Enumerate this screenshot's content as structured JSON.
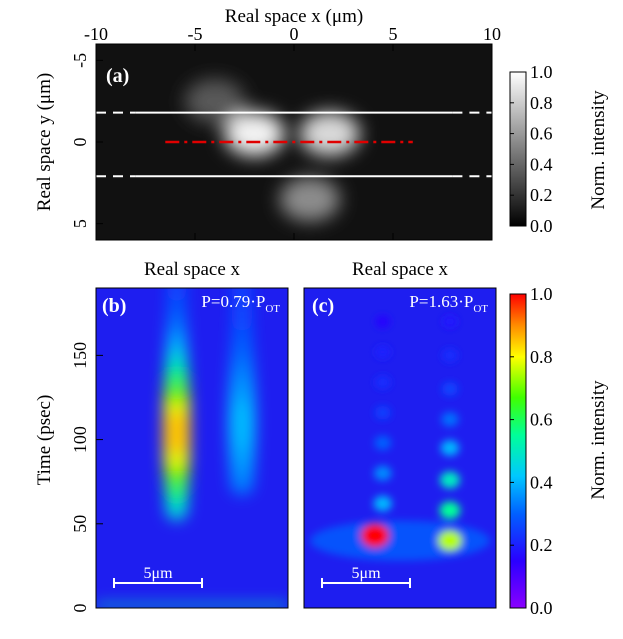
{
  "chart_data": [
    {
      "id": "a",
      "type": "heatmap",
      "panel_label": "(a)",
      "colormap": "grayscale",
      "xlabel": "Real space x (μm)",
      "ylabel": "Real space y (μm)",
      "xlim": [
        -10,
        10
      ],
      "ylim": [
        -6,
        6
      ],
      "y_inverted": true,
      "xticks": [
        "-10",
        "-5",
        "0",
        "5",
        "10"
      ],
      "xtick_values": [
        -10,
        -5,
        0,
        5,
        10
      ],
      "yticks": [
        "-5",
        "0",
        "5"
      ],
      "ytick_values": [
        -5,
        0,
        5
      ],
      "colorbar": {
        "label": "Norm. intensity",
        "ticks": [
          "0.0",
          "0.2",
          "0.4",
          "0.6",
          "0.8",
          "1.0"
        ],
        "tick_values": [
          0,
          0.2,
          0.4,
          0.6,
          0.8,
          1.0
        ]
      },
      "bright_spots": [
        {
          "x": -2.0,
          "y": -0.5,
          "intensity": 0.95
        },
        {
          "x": 1.8,
          "y": -0.5,
          "intensity": 0.85
        },
        {
          "x": 0.8,
          "y": 3.5,
          "intensity": 0.55
        },
        {
          "x": -4.0,
          "y": -2.5,
          "intensity": 0.35
        }
      ],
      "overlay_lines": [
        {
          "style": "solid-white",
          "y": -1.8,
          "x_from": -8,
          "x_to": 8
        },
        {
          "style": "dashed-white-ends",
          "y": -1.8,
          "x_segments": [
            [
              -10,
              -8
            ],
            [
              8,
              10
            ]
          ]
        },
        {
          "style": "solid-white",
          "y": 2.1,
          "x_from": -8,
          "x_to": 8
        },
        {
          "style": "dashed-white-ends",
          "y": 2.1,
          "x_segments": [
            [
              -10,
              -8
            ],
            [
              8,
              10
            ]
          ]
        },
        {
          "style": "dash-dot-red",
          "y": 0,
          "x_from": -6.5,
          "x_to": 6
        }
      ]
    },
    {
      "id": "b",
      "type": "heatmap",
      "panel_label": "(b)",
      "annotation": "P=0.79·P",
      "annotation_sub": "OT",
      "colormap": "rainbow",
      "xlabel": "Real space x",
      "ylabel": "Time (psec)",
      "ylim": [
        0,
        190
      ],
      "yticks": [
        "0",
        "50",
        "100",
        "150"
      ],
      "ytick_values": [
        0,
        50,
        100,
        150
      ],
      "scalebar": "5μm",
      "channels": [
        {
          "x_rel": 0.42,
          "t_start": 60,
          "t_end": 190,
          "peak_t": 105,
          "peak_intensity": 0.85
        },
        {
          "x_rel": 0.76,
          "t_start": 75,
          "t_end": 190,
          "peak_t": 110,
          "peak_intensity": 0.4
        }
      ]
    },
    {
      "id": "c",
      "type": "heatmap",
      "panel_label": "(c)",
      "annotation": "P=1.63·P",
      "annotation_sub": "OT",
      "colormap": "rainbow",
      "xlabel": "Real space x",
      "ylim": [
        0,
        190
      ],
      "scalebar": "5μm",
      "colorbar": {
        "label": "Norm. intensity",
        "ticks": [
          "0.0",
          "0.2",
          "0.4",
          "0.6",
          "0.8",
          "1.0"
        ],
        "tick_values": [
          0,
          0.2,
          0.4,
          0.6,
          0.8,
          1.0
        ]
      },
      "spots": [
        {
          "x_rel": 0.37,
          "t": 43,
          "intensity": 1.0
        },
        {
          "x_rel": 0.76,
          "t": 40,
          "intensity": 0.75
        },
        {
          "x_rel": 0.76,
          "t": 58,
          "intensity": 0.55
        },
        {
          "x_rel": 0.41,
          "t": 62,
          "intensity": 0.4
        },
        {
          "x_rel": 0.76,
          "t": 76,
          "intensity": 0.5
        },
        {
          "x_rel": 0.41,
          "t": 80,
          "intensity": 0.35
        },
        {
          "x_rel": 0.76,
          "t": 95,
          "intensity": 0.4
        },
        {
          "x_rel": 0.41,
          "t": 98,
          "intensity": 0.3
        },
        {
          "x_rel": 0.76,
          "t": 112,
          "intensity": 0.32
        },
        {
          "x_rel": 0.41,
          "t": 116,
          "intensity": 0.25
        },
        {
          "x_rel": 0.76,
          "t": 130,
          "intensity": 0.26
        },
        {
          "x_rel": 0.41,
          "t": 134,
          "intensity": 0.22
        },
        {
          "x_rel": 0.76,
          "t": 150,
          "intensity": 0.22
        },
        {
          "x_rel": 0.41,
          "t": 152,
          "intensity": 0.2
        },
        {
          "x_rel": 0.76,
          "t": 170,
          "intensity": 0.18
        },
        {
          "x_rel": 0.41,
          "t": 170,
          "intensity": 0.16
        }
      ]
    }
  ]
}
